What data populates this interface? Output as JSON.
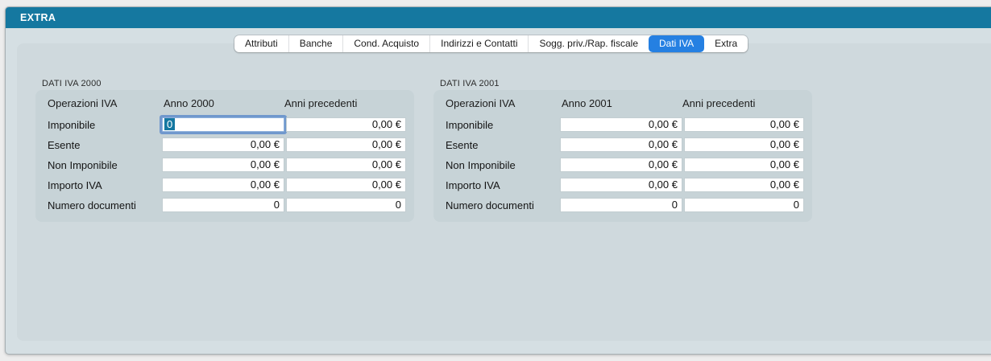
{
  "window": {
    "title": "EXTRA"
  },
  "tabs": [
    {
      "label": "Attributi",
      "active": false
    },
    {
      "label": "Banche",
      "active": false
    },
    {
      "label": "Cond. Acquisto",
      "active": false
    },
    {
      "label": "Indirizzi e Contatti",
      "active": false
    },
    {
      "label": "Sogg. priv./Rap. fiscale",
      "active": false
    },
    {
      "label": "Dati IVA",
      "active": true
    },
    {
      "label": "Extra",
      "active": false
    }
  ],
  "panels": [
    {
      "title": "DATI IVA 2000",
      "columns": [
        "Operazioni IVA",
        "Anno 2000",
        "Anni precedenti"
      ],
      "rows": [
        {
          "label": "Imponibile",
          "col1": "0",
          "col2": "0,00 €",
          "col1_focused": true,
          "col1_text_selected": true
        },
        {
          "label": "Esente",
          "col1": "0,00 €",
          "col2": "0,00 €"
        },
        {
          "label": "Non Imponibile",
          "col1": "0,00 €",
          "col2": "0,00 €"
        },
        {
          "label": "Importo IVA",
          "col1": "0,00 €",
          "col2": "0,00 €"
        },
        {
          "label": "Numero documenti",
          "col1": "0",
          "col2": "0"
        }
      ]
    },
    {
      "title": "DATI IVA 2001",
      "columns": [
        "Operazioni IVA",
        "Anno 2001",
        "Anni precedenti"
      ],
      "rows": [
        {
          "label": "Imponibile",
          "col1": "0,00 €",
          "col2": "0,00 €"
        },
        {
          "label": "Esente",
          "col1": "0,00 €",
          "col2": "0,00 €"
        },
        {
          "label": "Non Imponibile",
          "col1": "0,00 €",
          "col2": "0,00 €"
        },
        {
          "label": "Importo IVA",
          "col1": "0,00 €",
          "col2": "0,00 €"
        },
        {
          "label": "Numero documenti",
          "col1": "0",
          "col2": "0"
        }
      ]
    }
  ],
  "colors": {
    "titlebar": "#1578a0",
    "window_body": "#d5dfe3",
    "inner_panel": "#cfd9dd",
    "group_box": "#c7d3d7",
    "tab_active": "#2580e2",
    "focus_ring": "#608dcb",
    "text_selection": "#1578a1"
  }
}
